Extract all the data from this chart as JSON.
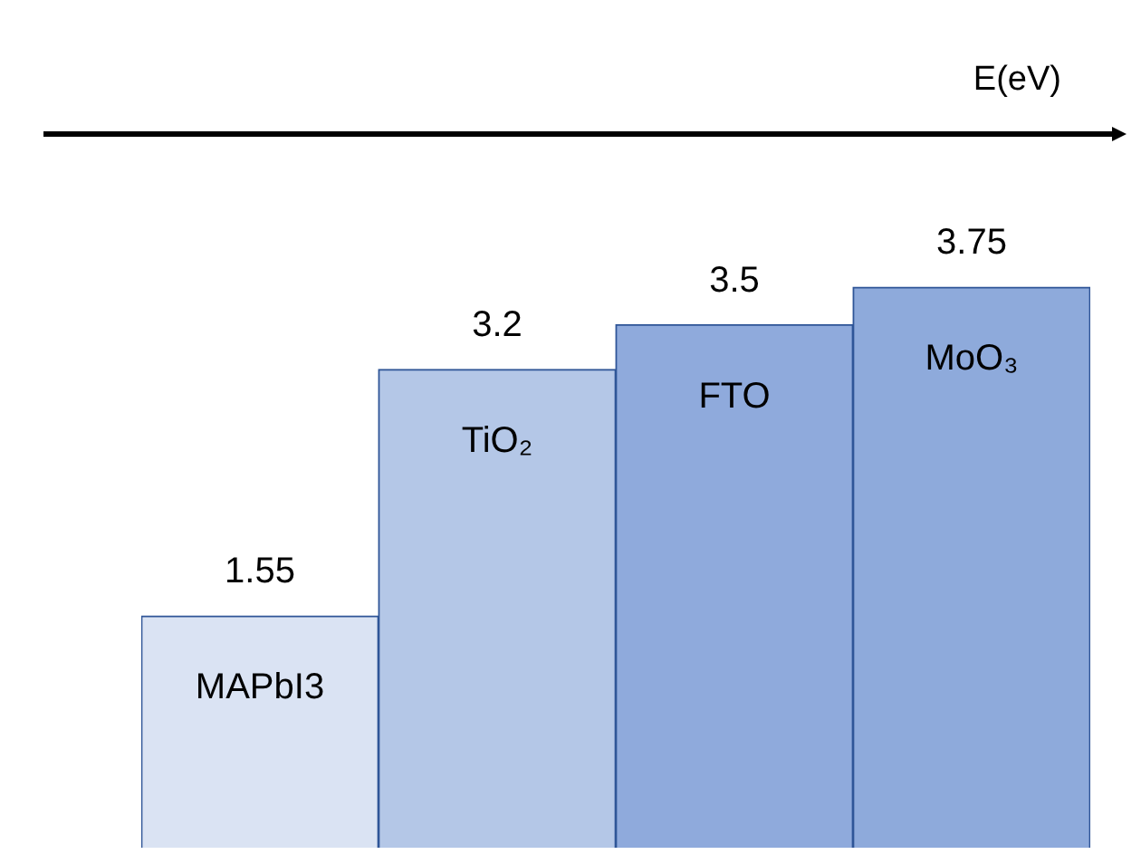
{
  "chart_data": {
    "type": "bar",
    "annotations": [
      "E(eV)"
    ],
    "categories": [
      "MAPbI3",
      "TiO₂",
      "FTO",
      "MoO₃"
    ],
    "values": [
      1.55,
      3.2,
      3.5,
      3.75
    ],
    "colors": [
      "#dae3f3",
      "#b4c7e7",
      "#8faadc",
      "#8eaadb"
    ],
    "data_labels": true,
    "legend": false
  }
}
